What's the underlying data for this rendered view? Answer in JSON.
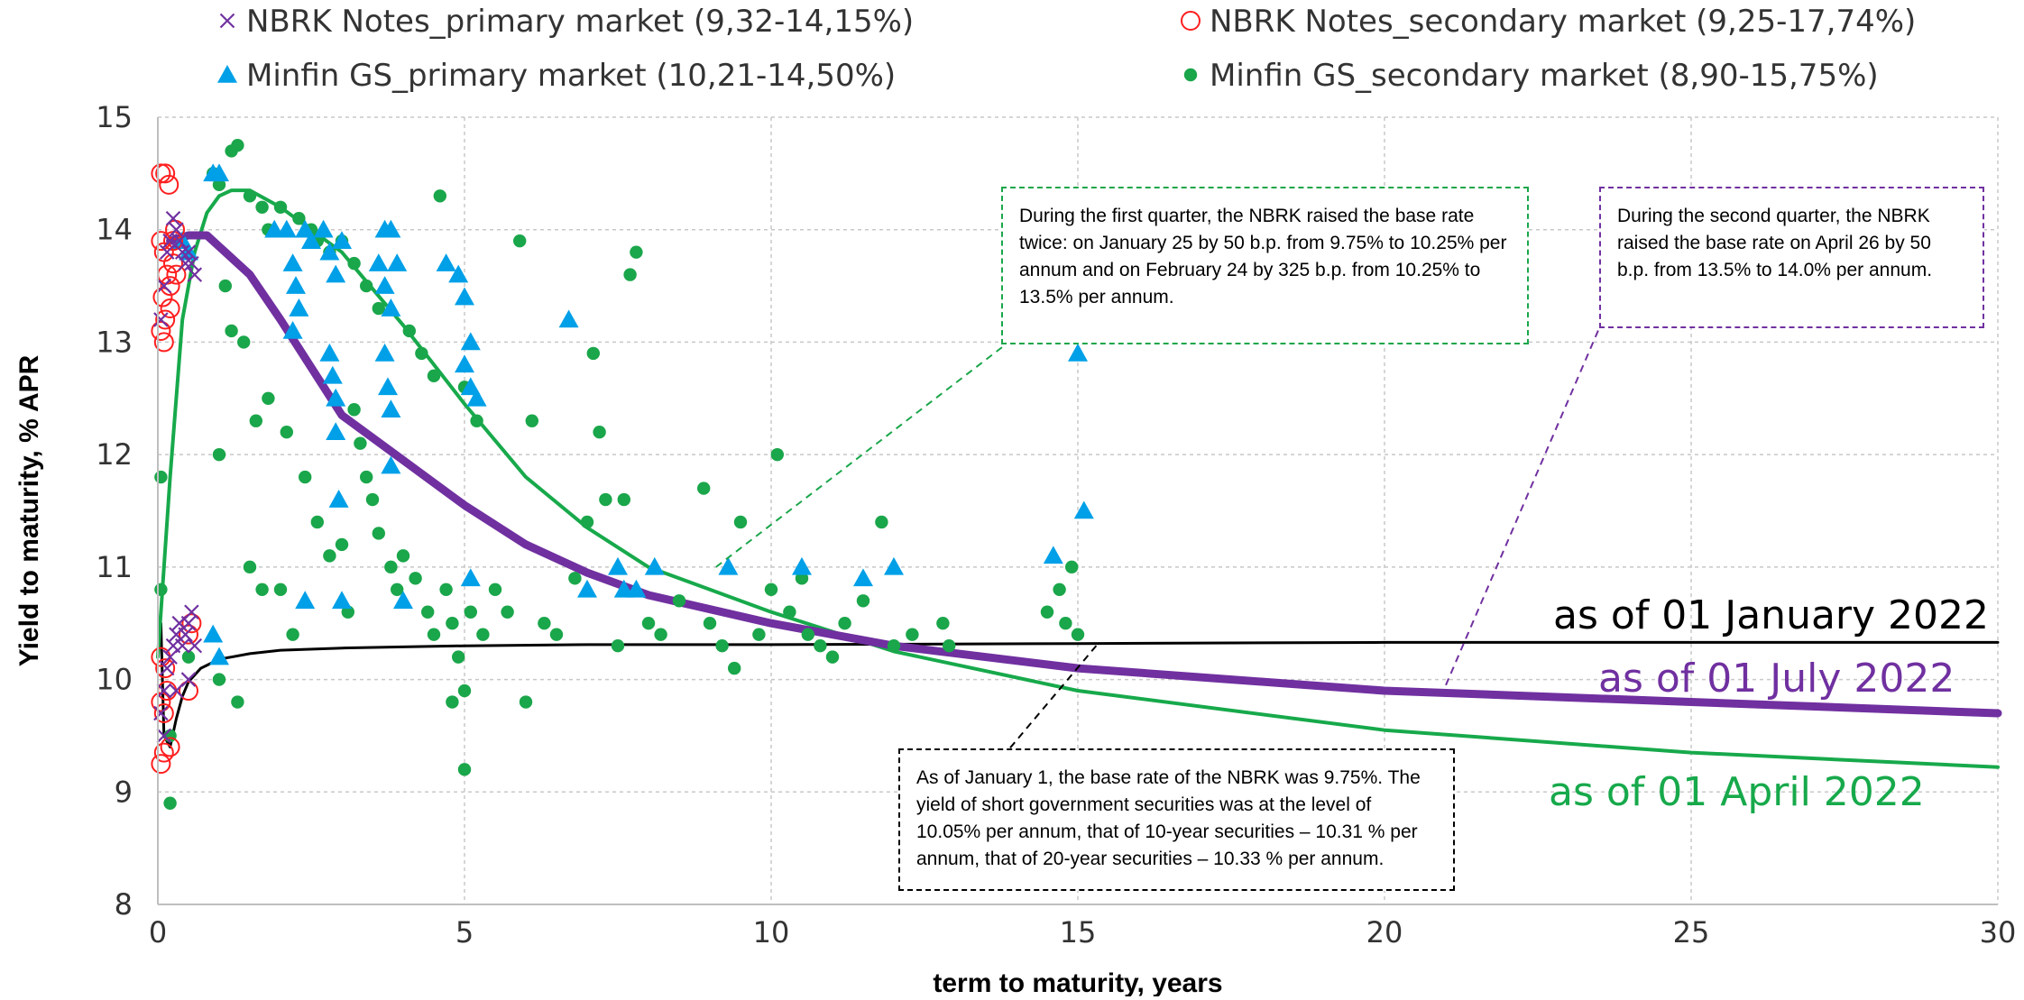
{
  "chart_data": {
    "type": "scatter",
    "xlabel": "term to maturity, years",
    "ylabel": "Yield to maturity, % APR",
    "xlim": [
      0,
      30
    ],
    "ylim": [
      8,
      15
    ],
    "x_ticks": [
      "0",
      "5",
      "10",
      "15",
      "20",
      "25",
      "30"
    ],
    "y_ticks": [
      "8",
      "9",
      "10",
      "11",
      "12",
      "13",
      "14",
      "15"
    ],
    "grid": true,
    "legend_placement": "top",
    "legend": [
      {
        "label": "NBRK Notes_primary market (9,32-14,15%)",
        "marker": "x",
        "color": "#7030a0"
      },
      {
        "label": "NBRK Notes_secondary market  (9,25-17,74%)",
        "marker": "open-circle",
        "color": "#ff1e1e"
      },
      {
        "label": "Minfin GS_primary market (10,21-14,50%)",
        "marker": "triangle",
        "color": "#00a0e8"
      },
      {
        "label": "Minfin GS_secondary market (8,90-15,75%)",
        "marker": "dot",
        "color": "#1aa64a"
      }
    ],
    "series": [
      {
        "name": "NBRK Notes_primary market (9,32-14,15%)",
        "marker": "x",
        "color": "#7030a0",
        "points": [
          [
            0.05,
            13.2
          ],
          [
            0.1,
            13.5
          ],
          [
            0.15,
            13.8
          ],
          [
            0.2,
            13.9
          ],
          [
            0.25,
            14.1
          ],
          [
            0.3,
            14.0
          ],
          [
            0.35,
            13.9
          ],
          [
            0.4,
            13.8
          ],
          [
            0.45,
            13.7
          ],
          [
            0.5,
            13.8
          ],
          [
            0.55,
            13.7
          ],
          [
            0.6,
            13.6
          ],
          [
            0.05,
            9.7
          ],
          [
            0.1,
            9.9
          ],
          [
            0.15,
            10.1
          ],
          [
            0.2,
            10.2
          ],
          [
            0.25,
            10.3
          ],
          [
            0.3,
            10.4
          ],
          [
            0.35,
            10.5
          ],
          [
            0.4,
            10.3
          ],
          [
            0.45,
            10.4
          ],
          [
            0.5,
            10.5
          ],
          [
            0.55,
            10.6
          ],
          [
            0.6,
            10.3
          ],
          [
            0.3,
            9.9
          ],
          [
            0.5,
            10.0
          ],
          [
            0.1,
            9.5
          ]
        ]
      },
      {
        "name": "NBRK Notes_secondary market  (9,25-17,74%)",
        "marker": "open-circle",
        "color": "#ff1e1e",
        "points": [
          [
            0.05,
            14.5
          ],
          [
            0.12,
            14.5
          ],
          [
            0.18,
            14.4
          ],
          [
            0.05,
            13.9
          ],
          [
            0.1,
            13.8
          ],
          [
            0.15,
            13.6
          ],
          [
            0.2,
            13.5
          ],
          [
            0.25,
            13.7
          ],
          [
            0.3,
            13.6
          ],
          [
            0.08,
            13.4
          ],
          [
            0.05,
            13.1
          ],
          [
            0.1,
            13.0
          ],
          [
            0.12,
            13.2
          ],
          [
            0.2,
            13.3
          ],
          [
            0.25,
            13.9
          ],
          [
            0.28,
            14.0
          ],
          [
            0.05,
            10.2
          ],
          [
            0.12,
            10.1
          ],
          [
            0.05,
            9.8
          ],
          [
            0.1,
            9.7
          ],
          [
            0.15,
            9.9
          ],
          [
            0.05,
            9.25
          ],
          [
            0.1,
            9.35
          ],
          [
            0.2,
            9.4
          ],
          [
            0.5,
            10.4
          ],
          [
            0.55,
            10.5
          ],
          [
            0.5,
            9.9
          ]
        ]
      },
      {
        "name": "Minfin GS_primary market (10,21-14,50%)",
        "marker": "triangle",
        "color": "#00a0e8",
        "points": [
          [
            0.4,
            13.9
          ],
          [
            0.5,
            13.8
          ],
          [
            0.9,
            14.5
          ],
          [
            1.0,
            14.5
          ],
          [
            1.9,
            14.0
          ],
          [
            2.1,
            14.0
          ],
          [
            2.4,
            14.0
          ],
          [
            2.5,
            13.9
          ],
          [
            2.7,
            14.0
          ],
          [
            2.8,
            13.8
          ],
          [
            2.9,
            13.6
          ],
          [
            3.0,
            13.9
          ],
          [
            2.2,
            13.7
          ],
          [
            2.25,
            13.5
          ],
          [
            2.3,
            13.3
          ],
          [
            2.2,
            13.1
          ],
          [
            2.8,
            12.9
          ],
          [
            2.85,
            12.7
          ],
          [
            2.9,
            12.5
          ],
          [
            2.9,
            12.2
          ],
          [
            2.95,
            11.6
          ],
          [
            3.7,
            14.0
          ],
          [
            3.8,
            14.0
          ],
          [
            3.6,
            13.7
          ],
          [
            3.7,
            13.5
          ],
          [
            3.8,
            13.3
          ],
          [
            3.9,
            13.7
          ],
          [
            3.7,
            12.9
          ],
          [
            3.75,
            12.6
          ],
          [
            3.8,
            12.4
          ],
          [
            3.8,
            11.9
          ],
          [
            4.0,
            10.7
          ],
          [
            4.7,
            13.7
          ],
          [
            4.9,
            13.6
          ],
          [
            5.0,
            13.4
          ],
          [
            5.1,
            13.0
          ],
          [
            5.0,
            12.8
          ],
          [
            5.1,
            12.6
          ],
          [
            5.2,
            12.5
          ],
          [
            5.1,
            10.9
          ],
          [
            6.7,
            13.2
          ],
          [
            7.0,
            10.8
          ],
          [
            7.5,
            11.0
          ],
          [
            7.6,
            10.8
          ],
          [
            7.8,
            10.8
          ],
          [
            8.1,
            11.0
          ],
          [
            9.3,
            11.0
          ],
          [
            10.5,
            11.0
          ],
          [
            11.5,
            10.9
          ],
          [
            12.0,
            11.0
          ],
          [
            14.6,
            11.1
          ],
          [
            15.0,
            12.9
          ],
          [
            15.1,
            11.5
          ],
          [
            0.9,
            10.4
          ],
          [
            1.0,
            10.2
          ],
          [
            2.4,
            10.7
          ],
          [
            3.0,
            10.7
          ]
        ]
      },
      {
        "name": "Minfin GS_secondary market (8,90-15,75%)",
        "marker": "dot",
        "color": "#1aa64a",
        "points": [
          [
            0.05,
            11.8
          ],
          [
            0.05,
            10.8
          ],
          [
            0.2,
            9.5
          ],
          [
            0.2,
            8.9
          ],
          [
            0.5,
            10.2
          ],
          [
            0.9,
            14.5
          ],
          [
            1.0,
            14.4
          ],
          [
            1.2,
            14.7
          ],
          [
            1.3,
            14.75
          ],
          [
            1.5,
            14.3
          ],
          [
            1.7,
            14.2
          ],
          [
            1.8,
            14.0
          ],
          [
            2.0,
            14.2
          ],
          [
            2.3,
            14.1
          ],
          [
            2.5,
            14.0
          ],
          [
            2.6,
            13.9
          ],
          [
            2.8,
            13.8
          ],
          [
            3.0,
            13.9
          ],
          [
            3.2,
            13.7
          ],
          [
            3.4,
            13.5
          ],
          [
            3.6,
            13.3
          ],
          [
            4.1,
            13.1
          ],
          [
            4.3,
            12.9
          ],
          [
            4.5,
            12.7
          ],
          [
            4.6,
            14.3
          ],
          [
            5.0,
            12.6
          ],
          [
            5.2,
            12.3
          ],
          [
            1.0,
            12.0
          ],
          [
            1.1,
            13.5
          ],
          [
            1.2,
            13.1
          ],
          [
            1.4,
            13.0
          ],
          [
            1.6,
            12.3
          ],
          [
            1.8,
            12.5
          ],
          [
            2.1,
            12.2
          ],
          [
            2.4,
            11.8
          ],
          [
            2.6,
            11.4
          ],
          [
            2.8,
            11.1
          ],
          [
            3.0,
            11.2
          ],
          [
            3.2,
            12.4
          ],
          [
            3.3,
            12.1
          ],
          [
            3.4,
            11.8
          ],
          [
            3.5,
            11.6
          ],
          [
            3.6,
            11.3
          ],
          [
            3.8,
            11.0
          ],
          [
            3.9,
            10.8
          ],
          [
            4.0,
            11.1
          ],
          [
            4.2,
            10.9
          ],
          [
            4.4,
            10.6
          ],
          [
            4.5,
            10.4
          ],
          [
            4.7,
            10.8
          ],
          [
            4.8,
            10.5
          ],
          [
            4.9,
            10.2
          ],
          [
            5.0,
            9.9
          ],
          [
            5.1,
            10.6
          ],
          [
            5.3,
            10.4
          ],
          [
            5.5,
            10.8
          ],
          [
            5.7,
            10.6
          ],
          [
            5.9,
            13.9
          ],
          [
            6.1,
            12.3
          ],
          [
            6.3,
            10.5
          ],
          [
            6.5,
            10.4
          ],
          [
            6.8,
            10.9
          ],
          [
            7.0,
            11.4
          ],
          [
            7.1,
            12.9
          ],
          [
            7.2,
            12.2
          ],
          [
            7.3,
            11.6
          ],
          [
            7.5,
            10.3
          ],
          [
            7.6,
            11.6
          ],
          [
            7.7,
            13.6
          ],
          [
            7.8,
            13.8
          ],
          [
            8.0,
            10.5
          ],
          [
            8.2,
            10.4
          ],
          [
            8.5,
            10.7
          ],
          [
            8.9,
            11.7
          ],
          [
            9.0,
            10.5
          ],
          [
            9.2,
            10.3
          ],
          [
            9.4,
            10.1
          ],
          [
            9.5,
            11.4
          ],
          [
            9.8,
            10.4
          ],
          [
            10.0,
            10.8
          ],
          [
            10.1,
            12.0
          ],
          [
            10.3,
            10.6
          ],
          [
            10.5,
            10.9
          ],
          [
            10.6,
            10.4
          ],
          [
            10.8,
            10.3
          ],
          [
            11.0,
            10.2
          ],
          [
            11.2,
            10.5
          ],
          [
            11.5,
            10.7
          ],
          [
            11.8,
            11.4
          ],
          [
            12.0,
            10.3
          ],
          [
            12.3,
            10.4
          ],
          [
            12.8,
            10.5
          ],
          [
            12.9,
            10.3
          ],
          [
            14.5,
            10.6
          ],
          [
            14.7,
            10.8
          ],
          [
            14.8,
            10.5
          ],
          [
            14.9,
            11.0
          ],
          [
            15.0,
            10.4
          ],
          [
            5.0,
            9.2
          ],
          [
            6.0,
            9.8
          ],
          [
            4.8,
            9.8
          ],
          [
            1.3,
            9.8
          ],
          [
            1.0,
            10.0
          ],
          [
            2.0,
            10.8
          ],
          [
            2.2,
            10.4
          ],
          [
            3.1,
            10.6
          ],
          [
            1.5,
            11.0
          ],
          [
            1.7,
            10.8
          ]
        ]
      }
    ],
    "curves": [
      {
        "name": "as of 01 January 2022",
        "color": "#000000",
        "width": 3,
        "x": [
          0.05,
          0.1,
          0.2,
          0.3,
          0.4,
          0.5,
          0.7,
          1,
          1.5,
          2,
          3,
          4,
          5,
          7,
          10,
          15,
          20,
          25,
          30
        ],
        "y": [
          10.5,
          9.5,
          9.4,
          9.65,
          9.85,
          9.98,
          10.1,
          10.18,
          10.23,
          10.26,
          10.28,
          10.29,
          10.3,
          10.31,
          10.31,
          10.32,
          10.33,
          10.33,
          10.33
        ]
      },
      {
        "name": "as of 01 April 2022",
        "color": "#17a94b",
        "width": 4,
        "x": [
          0,
          0.2,
          0.4,
          0.6,
          0.8,
          1,
          1.2,
          1.5,
          2,
          3,
          4,
          5,
          6,
          7,
          8,
          10,
          12,
          15,
          20,
          25,
          30
        ],
        "y": [
          10.2,
          11.8,
          13.2,
          13.8,
          14.15,
          14.3,
          14.35,
          14.35,
          14.2,
          13.8,
          13.15,
          12.45,
          11.8,
          11.35,
          11.0,
          10.6,
          10.25,
          9.9,
          9.55,
          9.35,
          9.22
        ]
      },
      {
        "name": "as of 01 July 2022",
        "color": "#7030a0",
        "width": 9,
        "x": [
          0.2,
          0.5,
          0.8,
          1,
          1.5,
          2,
          3,
          4,
          5,
          6,
          7,
          8,
          10,
          12,
          15,
          20,
          25,
          30
        ],
        "y": [
          13.9,
          13.95,
          13.95,
          13.85,
          13.6,
          13.2,
          12.35,
          11.95,
          11.55,
          11.2,
          10.95,
          10.75,
          10.5,
          10.3,
          10.1,
          9.9,
          9.8,
          9.7
        ]
      }
    ],
    "curve_labels": [
      "as of 01 January 2022",
      "as of 01 July 2022",
      "as of 01 April 2022"
    ],
    "annotations": [
      "During the first quarter, the NBRK raised the base rate twice: on January 25 by 50 b.p. from 9.75% to 10.25% per annum and on February 24 by 325 b.p. from 10.25% to 13.5% per annum.",
      "During the second quarter, the NBRK raised the base rate on April 26 by 50 b.p. from 13.5% to 14.0% per annum.",
      "As of January 1, the base rate of the NBRK was 9.75%. The yield of short government securities was at the level of 10.05% per annum, that of 10-year securities – 10.31 % per annum, that of 20-year securities – 10.33 % per annum."
    ],
    "leader_lines": [
      {
        "annotation": 0,
        "color": "#1aa64a",
        "from": [
          9.1,
          11.0
        ]
      },
      {
        "annotation": 1,
        "color": "#7030a0",
        "from": [
          21.0,
          9.95
        ]
      },
      {
        "annotation": 2,
        "color": "#000000",
        "from": [
          15.3,
          10.3
        ]
      }
    ]
  }
}
